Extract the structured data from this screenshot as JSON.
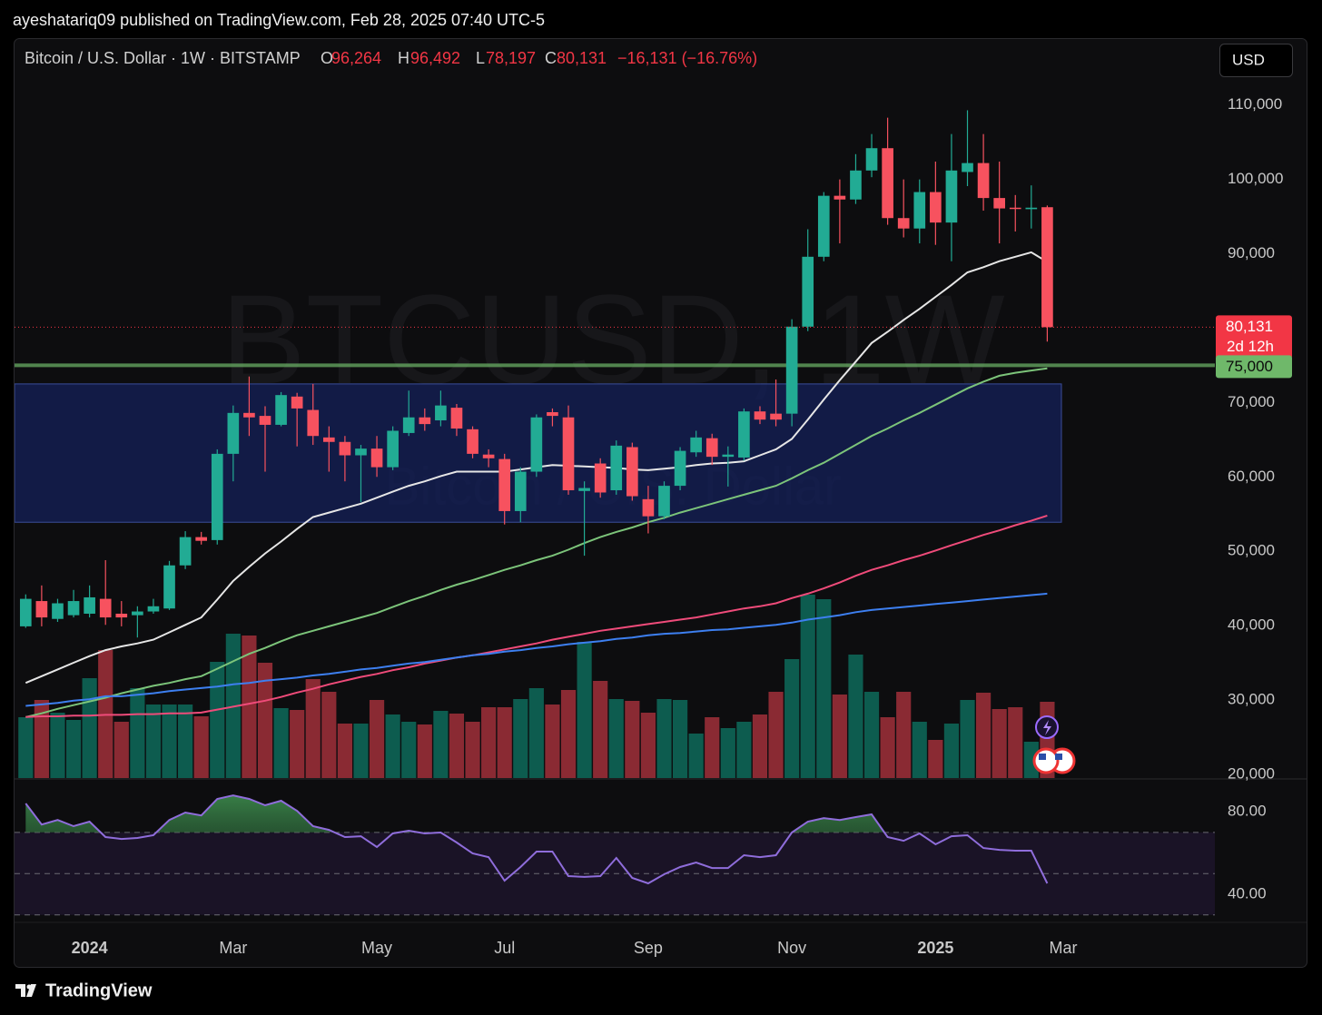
{
  "header": {
    "published": "ayeshatariq09 published on TradingView.com, Feb 28, 2025 07:40 UTC-5",
    "currency": "USD",
    "brand": "TradingView"
  },
  "chart_data": [
    {
      "type": "candlestick",
      "legend": {
        "symbol": "Bitcoin / U.S. Dollar · 1W · BITSTAMP",
        "o_label": "O",
        "o": "96,264",
        "h_label": "H",
        "h": "96,492",
        "l_label": "L",
        "l": "78,197",
        "c_label": "C",
        "c": "80,131",
        "change": "−16,131 (−16.76%)"
      },
      "watermark": "BTCUSD, 1W",
      "watermark_sub": "Bitcoin / U.S. Dollar",
      "open": [
        39900,
        43300,
        40900,
        41400,
        41600,
        43600,
        41600,
        41400,
        41900,
        42300,
        48100,
        51900,
        51500,
        63100,
        68600,
        68200,
        67000,
        70800,
        69000,
        65300,
        64700,
        62900,
        63800,
        61300,
        65900,
        68000,
        67600,
        69300,
        66400,
        63000,
        62400,
        55400,
        60700,
        68700,
        68000,
        58100,
        61800,
        58200,
        64000,
        57000,
        54700,
        58800,
        63300,
        65200,
        62700,
        62600,
        68800,
        68500,
        68500,
        80200,
        89600,
        97800,
        97300,
        101200,
        104200,
        94800,
        93400,
        98300,
        94200,
        101000,
        102200,
        97500,
        96200,
        96000,
        96264
      ],
      "high": [
        44200,
        45400,
        43600,
        44800,
        45400,
        48800,
        43300,
        42600,
        43600,
        48700,
        52700,
        52600,
        63700,
        69600,
        73500,
        69500,
        71400,
        71300,
        72500,
        66800,
        65500,
        64300,
        65500,
        66800,
        71600,
        69200,
        71600,
        69800,
        66800,
        63700,
        63100,
        61300,
        68400,
        69200,
        69600,
        59400,
        62500,
        64900,
        64600,
        58800,
        59400,
        64000,
        66200,
        65800,
        64100,
        69200,
        69500,
        73100,
        81200,
        93300,
        98300,
        100000,
        103400,
        106100,
        108300,
        100000,
        100000,
        102400,
        106100,
        109300,
        106100,
        102400,
        97900,
        99200,
        96492
      ],
      "low": [
        39700,
        39900,
        40500,
        41100,
        41100,
        40100,
        39900,
        38400,
        41600,
        42100,
        47600,
        50900,
        50900,
        59400,
        65500,
        60700,
        66800,
        64100,
        64300,
        60700,
        59400,
        56600,
        60000,
        60900,
        65500,
        66200,
        66800,
        65500,
        62500,
        61300,
        53600,
        53900,
        60000,
        66800,
        57600,
        49400,
        57200,
        57600,
        56800,
        52400,
        54300,
        58200,
        62700,
        61600,
        58700,
        62200,
        67100,
        66800,
        66800,
        79600,
        89000,
        91400,
        96700,
        100300,
        93900,
        92200,
        91400,
        91200,
        89000,
        99100,
        95800,
        91400,
        93000,
        93400,
        78197
      ],
      "close": [
        43600,
        41100,
        43000,
        43300,
        43800,
        41100,
        41100,
        41900,
        42600,
        48100,
        51900,
        51400,
        63100,
        68600,
        68000,
        67000,
        71000,
        69200,
        65500,
        64700,
        62900,
        63800,
        61300,
        66200,
        68000,
        67100,
        69600,
        66500,
        63100,
        62500,
        55400,
        60700,
        68000,
        68200,
        58200,
        58500,
        57900,
        64200,
        57400,
        54700,
        58800,
        63500,
        65300,
        62700,
        63000,
        68800,
        67700,
        67700,
        80200,
        89600,
        97800,
        97300,
        101200,
        104200,
        94800,
        93400,
        98300,
        94200,
        101200,
        102200,
        97500,
        96100,
        96100,
        96200,
        80131
      ],
      "up_color": "#22ab94",
      "down_color": "#f7525f",
      "volume": [
        67,
        86,
        72,
        64,
        110,
        141,
        62,
        99,
        81,
        81,
        81,
        68,
        128,
        159,
        157,
        127,
        77,
        75,
        109,
        95,
        60,
        60,
        86,
        70,
        62,
        59,
        74,
        71,
        62,
        78,
        78,
        87,
        99,
        81,
        97,
        150,
        107,
        87,
        85,
        72,
        87,
        86,
        49,
        67,
        55,
        62,
        70,
        95,
        131,
        202,
        197,
        92,
        136,
        95,
        67,
        95,
        62,
        42,
        60,
        86,
        94,
        76,
        78,
        40,
        84
      ],
      "volume_up_color": "#0d5c4f",
      "volume_down_color": "#8a2a33",
      "lines": [
        {
          "color": "#e6e6e6",
          "values": [
            32300,
            33200,
            34100,
            35000,
            35900,
            36700,
            37200,
            37600,
            38100,
            39100,
            40100,
            41100,
            43500,
            46000,
            47900,
            49700,
            51300,
            53000,
            54600,
            55200,
            55800,
            56400,
            57200,
            58000,
            58800,
            59400,
            60100,
            60700,
            60700,
            60700,
            60700,
            61000,
            61300,
            61600,
            61500,
            61400,
            61300,
            61200,
            61000,
            60900,
            61100,
            61300,
            61600,
            61800,
            61900,
            62100,
            62900,
            63700,
            65100,
            67700,
            70400,
            73000,
            75500,
            78000,
            79500,
            81100,
            82600,
            84200,
            85800,
            87500,
            88200,
            89000,
            89600,
            90200,
            88900
          ]
        },
        {
          "color": "#7cc47a",
          "values": [
            27700,
            28200,
            28800,
            29300,
            29800,
            30300,
            30900,
            31400,
            31900,
            32300,
            32800,
            33200,
            34200,
            35200,
            36200,
            37000,
            37900,
            38700,
            39300,
            39900,
            40500,
            41100,
            41700,
            42500,
            43300,
            44000,
            44800,
            45500,
            46100,
            46800,
            47500,
            48100,
            48800,
            49400,
            50200,
            51100,
            51900,
            52600,
            53200,
            53900,
            54500,
            55200,
            55800,
            56400,
            57000,
            57600,
            58200,
            58800,
            59800,
            60900,
            61900,
            63100,
            64300,
            65500,
            66500,
            67600,
            68600,
            69700,
            70800,
            71900,
            72800,
            73600,
            74000,
            74300,
            74600
          ]
        },
        {
          "color": "#ef4b7a",
          "values": [
            27700,
            27800,
            27800,
            27900,
            27900,
            28000,
            28000,
            28100,
            28100,
            28200,
            28200,
            28300,
            28700,
            29100,
            29500,
            29900,
            30400,
            31000,
            31500,
            32100,
            32600,
            33100,
            33500,
            34000,
            34400,
            34900,
            35300,
            35700,
            36000,
            36400,
            36800,
            37200,
            37600,
            38100,
            38500,
            38900,
            39300,
            39600,
            39900,
            40200,
            40500,
            40800,
            41100,
            41500,
            41900,
            42300,
            42600,
            43000,
            43700,
            44300,
            45000,
            45800,
            46700,
            47500,
            48100,
            48800,
            49400,
            50100,
            50800,
            51500,
            52200,
            52800,
            53500,
            54100,
            54800
          ]
        },
        {
          "color": "#3d7ff0",
          "values": [
            29200,
            29400,
            29600,
            29900,
            30100,
            30500,
            30500,
            30700,
            30900,
            31200,
            31400,
            31600,
            31800,
            32100,
            32300,
            32600,
            32800,
            33000,
            33300,
            33500,
            33800,
            34100,
            34300,
            34600,
            34900,
            35100,
            35400,
            35700,
            36000,
            36200,
            36500,
            36700,
            37000,
            37200,
            37500,
            37700,
            37900,
            38200,
            38400,
            38700,
            38900,
            39000,
            39200,
            39400,
            39500,
            39700,
            39900,
            40100,
            40400,
            40800,
            41100,
            41400,
            41800,
            42100,
            42300,
            42500,
            42700,
            42900,
            43100,
            43300,
            43500,
            43700,
            43900,
            44100,
            44300
          ]
        }
      ],
      "zone": [
        53900,
        72500
      ],
      "zone_color": "#14205a",
      "support": {
        "value": 75000,
        "label": "75,000",
        "color": "#6fb86a"
      },
      "last_price": {
        "value": 80131,
        "label": "80,131",
        "countdown": "2d 12h",
        "color": "#f23645"
      },
      "ylim": [
        19500,
        119000
      ],
      "yticks": [
        {
          "value": 20000,
          "label": "20,000"
        },
        {
          "value": 30000,
          "label": "30,000"
        },
        {
          "value": 40000,
          "label": "40,000"
        },
        {
          "value": 50000,
          "label": "50,000"
        },
        {
          "value": 60000,
          "label": "60,000"
        },
        {
          "value": 70000,
          "label": "70,000"
        },
        {
          "value": 90000,
          "label": "90,000"
        },
        {
          "value": 100000,
          "label": "100,000"
        },
        {
          "value": 110000,
          "label": "110,000"
        }
      ],
      "xlim": [
        -0.7,
        74.5
      ],
      "xticks": [
        {
          "value": 4,
          "label": "2024"
        },
        {
          "value": 13,
          "label": "Mar"
        },
        {
          "value": 22,
          "label": "May"
        },
        {
          "value": 30,
          "label": "Jul"
        },
        {
          "value": 39,
          "label": "Sep"
        },
        {
          "value": 48,
          "label": "Nov"
        },
        {
          "value": 57,
          "label": "2025"
        },
        {
          "value": 65,
          "label": "Mar"
        }
      ]
    },
    {
      "type": "line",
      "color": "#8f6ddb",
      "values": [
        84.0,
        73.8,
        76.0,
        73.0,
        75.2,
        67.7,
        66.8,
        67.3,
        68.6,
        76.0,
        79.6,
        78.2,
        86.2,
        87.9,
        86.2,
        83.1,
        85.3,
        80.4,
        73.0,
        71.2,
        67.7,
        68.1,
        62.9,
        69.5,
        70.8,
        69.5,
        69.9,
        65.1,
        59.8,
        58.0,
        46.6,
        53.2,
        60.7,
        60.7,
        48.8,
        48.4,
        48.8,
        57.6,
        47.9,
        45.3,
        49.7,
        53.2,
        55.4,
        52.7,
        52.7,
        58.9,
        58.0,
        58.9,
        69.9,
        75.2,
        76.9,
        76.0,
        77.4,
        78.7,
        67.7,
        65.9,
        69.5,
        64.2,
        68.1,
        68.6,
        62.4,
        61.5,
        61.1,
        61.1,
        45.3
      ],
      "ylim": [
        29,
        95
      ],
      "yticks": [
        {
          "value": 40,
          "label": "40.00"
        },
        {
          "value": 80,
          "label": "80.00"
        }
      ],
      "levels": [
        70,
        50,
        30
      ],
      "band": [
        30,
        70
      ],
      "band_color": "#1a1326",
      "overbought_color": "#2f6b3c"
    }
  ]
}
